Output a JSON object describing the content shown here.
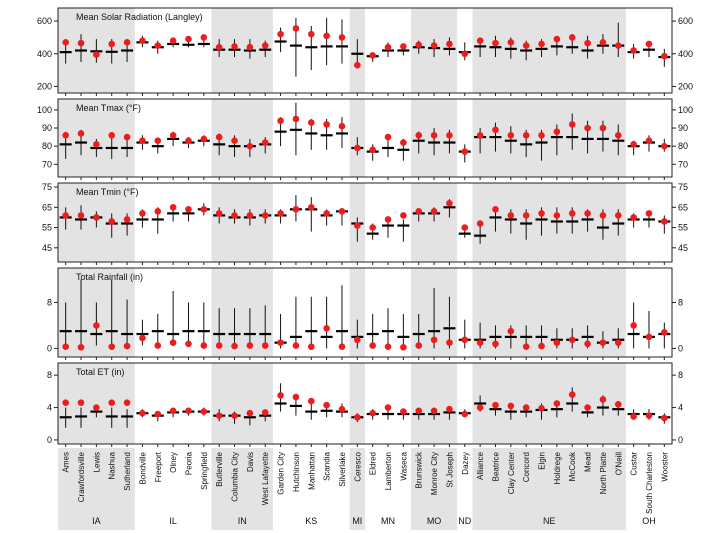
{
  "chart_data": {
    "type": "scatter",
    "description_series": [
      "observed",
      "simulated"
    ],
    "colors": {
      "observed": "#000000",
      "simulated": "#ee1c1c",
      "band": "#e3e3e3"
    },
    "stations": [
      "Ames",
      "Crawfordsville",
      "Lewis",
      "Nashua",
      "Sutherland",
      "Bondville",
      "Freeport",
      "Olney",
      "Peoria",
      "Springfield",
      "Butlerville",
      "Columbia City",
      "Davis",
      "West Lafayette",
      "Garden City",
      "Hutchinson",
      "Manhattan",
      "Scandia",
      "Silverlake",
      "Ceresco",
      "Eldred",
      "Lamberton",
      "Waseca",
      "Brunswick",
      "Monroe City",
      "St Joseph",
      "Dazey",
      "Alliance",
      "Beatrice",
      "Clay Center",
      "Concord",
      "Elgin",
      "Holdrege",
      "McCook",
      "Mead",
      "North Platte",
      "O'Neill",
      "Custar",
      "South Charleston",
      "Wooster"
    ],
    "states": [
      {
        "name": "IA",
        "count": 5,
        "shaded": true
      },
      {
        "name": "IL",
        "count": 5,
        "shaded": false
      },
      {
        "name": "IN",
        "count": 4,
        "shaded": true
      },
      {
        "name": "KS",
        "count": 5,
        "shaded": false
      },
      {
        "name": "MI",
        "count": 1,
        "shaded": true
      },
      {
        "name": "MN",
        "count": 3,
        "shaded": false
      },
      {
        "name": "MO",
        "count": 3,
        "shaded": true
      },
      {
        "name": "ND",
        "count": 1,
        "shaded": false
      },
      {
        "name": "NE",
        "count": 10,
        "shaded": true
      },
      {
        "name": "OH",
        "count": 3,
        "shaded": false
      }
    ],
    "panels": [
      {
        "title": "Mean Solar Radiation (Langley)",
        "ylim": [
          160,
          680
        ],
        "ticks": [
          200,
          400,
          600
        ],
        "median": [
          410,
          420,
          415,
          412,
          420,
          470,
          440,
          460,
          455,
          460,
          425,
          425,
          420,
          425,
          475,
          450,
          440,
          445,
          445,
          400,
          385,
          420,
          420,
          440,
          435,
          430,
          410,
          445,
          440,
          430,
          420,
          430,
          445,
          440,
          420,
          450,
          450,
          410,
          425,
          380
        ],
        "low": [
          340,
          350,
          345,
          340,
          350,
          440,
          400,
          440,
          440,
          440,
          380,
          380,
          370,
          380,
          410,
          260,
          300,
          330,
          340,
          330,
          350,
          380,
          390,
          400,
          380,
          390,
          360,
          380,
          380,
          370,
          360,
          380,
          390,
          400,
          370,
          400,
          380,
          370,
          380,
          320
        ],
        "high": [
          480,
          520,
          490,
          490,
          490,
          510,
          480,
          500,
          490,
          510,
          490,
          490,
          490,
          480,
          560,
          620,
          570,
          620,
          610,
          490,
          410,
          470,
          460,
          480,
          490,
          500,
          470,
          500,
          510,
          500,
          480,
          490,
          500,
          520,
          510,
          520,
          590,
          460,
          470,
          430
        ],
        "simulated": [
          470,
          465,
          395,
          460,
          470,
          480,
          450,
          480,
          490,
          500,
          440,
          445,
          440,
          450,
          520,
          555,
          520,
          510,
          500,
          330,
          390,
          440,
          445,
          455,
          450,
          460,
          400,
          480,
          465,
          470,
          450,
          460,
          490,
          500,
          465,
          470,
          450,
          420,
          460,
          385
        ]
      },
      {
        "title": "Mean Tmax (°F)",
        "ylim": [
          63,
          106
        ],
        "ticks": [
          70,
          80,
          90,
          100
        ],
        "median": [
          81,
          82,
          79,
          79,
          79,
          82,
          80,
          84,
          82,
          83,
          81,
          80,
          80,
          81,
          88,
          89,
          87,
          86,
          87,
          79,
          77,
          79,
          78,
          83,
          82,
          82,
          77,
          85,
          85,
          83,
          81,
          82,
          85,
          85,
          84,
          84,
          83,
          80,
          82,
          80
        ],
        "low": [
          73,
          75,
          74,
          73,
          74,
          78,
          76,
          80,
          79,
          80,
          75,
          74,
          74,
          76,
          80,
          75,
          78,
          78,
          79,
          75,
          72,
          74,
          72,
          76,
          75,
          76,
          71,
          76,
          77,
          76,
          74,
          72,
          75,
          78,
          76,
          77,
          75,
          75,
          77,
          77
        ],
        "high": [
          88,
          89,
          84,
          85,
          86,
          86,
          84,
          88,
          85,
          86,
          87,
          86,
          84,
          85,
          96,
          104,
          95,
          95,
          96,
          85,
          81,
          86,
          84,
          88,
          90,
          89,
          81,
          90,
          93,
          91,
          89,
          89,
          92,
          98,
          94,
          94,
          92,
          83,
          86,
          84
        ],
        "simulated": [
          86,
          87,
          81,
          86,
          85,
          83,
          83,
          86,
          83,
          84,
          85,
          83,
          80,
          82,
          94,
          95,
          93,
          92,
          91,
          79,
          78,
          85,
          82,
          86,
          86,
          86,
          77,
          86,
          89,
          86,
          86,
          86,
          88,
          92,
          90,
          90,
          86,
          81,
          83,
          80
        ]
      },
      {
        "title": "Mean Tmin (°F)",
        "ylim": [
          38,
          77
        ],
        "ticks": [
          45,
          55,
          65,
          75
        ],
        "median": [
          60,
          59,
          60,
          57,
          57,
          59,
          59,
          62,
          62,
          64,
          61,
          60,
          60,
          61,
          61,
          64,
          64,
          61,
          63,
          57,
          52,
          56,
          56,
          62,
          62,
          65,
          52,
          51,
          60,
          59,
          57,
          59,
          58,
          58,
          59,
          55,
          57,
          59,
          59,
          58
        ],
        "low": [
          54,
          54,
          55,
          50,
          51,
          55,
          52,
          58,
          58,
          61,
          57,
          57,
          56,
          57,
          57,
          58,
          53,
          56,
          56,
          48,
          49,
          50,
          48,
          58,
          58,
          60,
          50,
          47,
          53,
          52,
          49,
          51,
          52,
          52,
          53,
          49,
          51,
          55,
          55,
          52
        ],
        "high": [
          65,
          66,
          63,
          62,
          62,
          64,
          65,
          66,
          65,
          67,
          65,
          64,
          64,
          64,
          64,
          71,
          70,
          64,
          64,
          60,
          57,
          60,
          59,
          64,
          65,
          69,
          56,
          58,
          64,
          64,
          64,
          65,
          65,
          65,
          64,
          64,
          64,
          62,
          62,
          61
        ],
        "simulated": [
          61,
          61,
          60,
          58,
          59,
          62,
          63,
          65,
          64,
          64,
          62,
          61,
          61,
          61,
          62,
          64,
          65,
          62,
          63,
          56,
          55,
          59,
          61,
          63,
          63,
          67,
          55,
          57,
          64,
          61,
          61,
          62,
          61,
          62,
          62,
          61,
          61,
          60,
          62,
          58
        ]
      },
      {
        "title": "Total Rainfall (in)",
        "ylim": [
          -1.5,
          14
        ],
        "ticks": [
          0,
          8
        ],
        "median": [
          3.0,
          3.0,
          2.5,
          3.0,
          2.5,
          2.5,
          3.0,
          2.5,
          3.0,
          3.0,
          2.5,
          2.5,
          2.5,
          2.5,
          1.0,
          2.0,
          3.0,
          2.0,
          3.0,
          2.0,
          2.5,
          3.0,
          2.0,
          2.5,
          3.0,
          3.5,
          1.5,
          1.5,
          2.0,
          2.0,
          2.0,
          2.0,
          1.5,
          1.5,
          2.0,
          1.0,
          1.5,
          2.5,
          2.0,
          2.5
        ],
        "low": [
          0.5,
          0.5,
          0.5,
          0.5,
          0.5,
          0.5,
          0.5,
          0.5,
          0.5,
          0.5,
          0.5,
          0.5,
          0.5,
          0.5,
          0.0,
          0.0,
          0.0,
          0.0,
          0.0,
          0.0,
          0.0,
          0.0,
          0.0,
          0.0,
          0.0,
          0.0,
          0.0,
          0.0,
          0.0,
          0.0,
          0.0,
          0.0,
          0.0,
          0.0,
          0.0,
          0.0,
          0.0,
          0.0,
          0.0,
          0.0
        ],
        "high": [
          8.0,
          12.0,
          8.0,
          12.0,
          8.5,
          5.0,
          6.0,
          10.0,
          8.0,
          8.0,
          7.0,
          7.0,
          7.0,
          7.5,
          6.0,
          9.0,
          9.0,
          9.0,
          11.0,
          5.0,
          6.0,
          7.0,
          6.0,
          6.0,
          10.5,
          9.0,
          5.0,
          4.5,
          4.0,
          4.0,
          4.0,
          4.0,
          3.5,
          3.5,
          4.0,
          3.0,
          3.5,
          8.0,
          6.5,
          4.5
        ],
        "simulated": [
          0.3,
          0.2,
          4.0,
          0.3,
          0.4,
          1.8,
          0.5,
          1.0,
          0.8,
          0.5,
          0.5,
          0.4,
          0.5,
          0.5,
          1.0,
          0.5,
          0.3,
          3.5,
          0.3,
          1.5,
          0.5,
          0.3,
          0.2,
          0.5,
          1.5,
          1.0,
          1.5,
          1.0,
          0.8,
          3.0,
          0.3,
          0.4,
          1.0,
          1.5,
          0.8,
          1.0,
          1.0,
          4.0,
          2.0,
          2.8
        ]
      },
      {
        "title": "Total ET (in)",
        "ylim": [
          -0.5,
          9.5
        ],
        "ticks": [
          0,
          4,
          8
        ],
        "median": [
          2.8,
          2.9,
          3.5,
          2.9,
          2.9,
          3.3,
          3.0,
          3.4,
          3.5,
          3.5,
          3.0,
          3.0,
          2.8,
          3.0,
          4.5,
          4.2,
          3.5,
          3.6,
          3.5,
          2.8,
          3.2,
          3.2,
          3.2,
          3.2,
          3.2,
          3.4,
          3.3,
          4.5,
          3.8,
          3.5,
          3.5,
          3.7,
          3.8,
          4.5,
          3.4,
          4.0,
          3.8,
          3.2,
          3.2,
          2.8
        ],
        "low": [
          1.5,
          1.5,
          2.8,
          1.5,
          1.5,
          2.8,
          2.3,
          2.8,
          3.0,
          3.0,
          2.3,
          2.0,
          1.8,
          2.3,
          3.5,
          3.0,
          2.5,
          2.8,
          2.8,
          2.2,
          2.5,
          2.5,
          2.5,
          2.5,
          2.5,
          2.5,
          2.8,
          3.5,
          3.0,
          2.5,
          2.8,
          2.5,
          2.8,
          3.5,
          2.8,
          3.0,
          3.0,
          2.5,
          2.5,
          2.0
        ],
        "high": [
          4.0,
          4.0,
          4.0,
          4.0,
          3.8,
          3.8,
          3.5,
          4.0,
          4.0,
          4.0,
          3.8,
          3.5,
          3.5,
          3.5,
          7.0,
          5.5,
          5.0,
          4.5,
          4.5,
          3.3,
          3.8,
          3.8,
          3.8,
          3.8,
          3.8,
          4.0,
          3.8,
          5.5,
          4.5,
          4.5,
          4.3,
          4.5,
          4.8,
          6.5,
          4.0,
          5.5,
          4.8,
          3.8,
          3.8,
          3.3
        ],
        "simulated": [
          4.6,
          4.6,
          4.0,
          4.6,
          4.6,
          3.3,
          3.2,
          3.6,
          3.6,
          3.5,
          3.0,
          3.0,
          3.3,
          3.4,
          5.5,
          5.3,
          4.8,
          4.3,
          3.8,
          2.8,
          3.3,
          4.0,
          3.5,
          3.6,
          3.6,
          3.8,
          3.2,
          4.0,
          4.3,
          4.2,
          4.0,
          3.9,
          4.5,
          5.6,
          4.0,
          5.0,
          4.4,
          2.9,
          3.0,
          2.7
        ]
      }
    ]
  }
}
